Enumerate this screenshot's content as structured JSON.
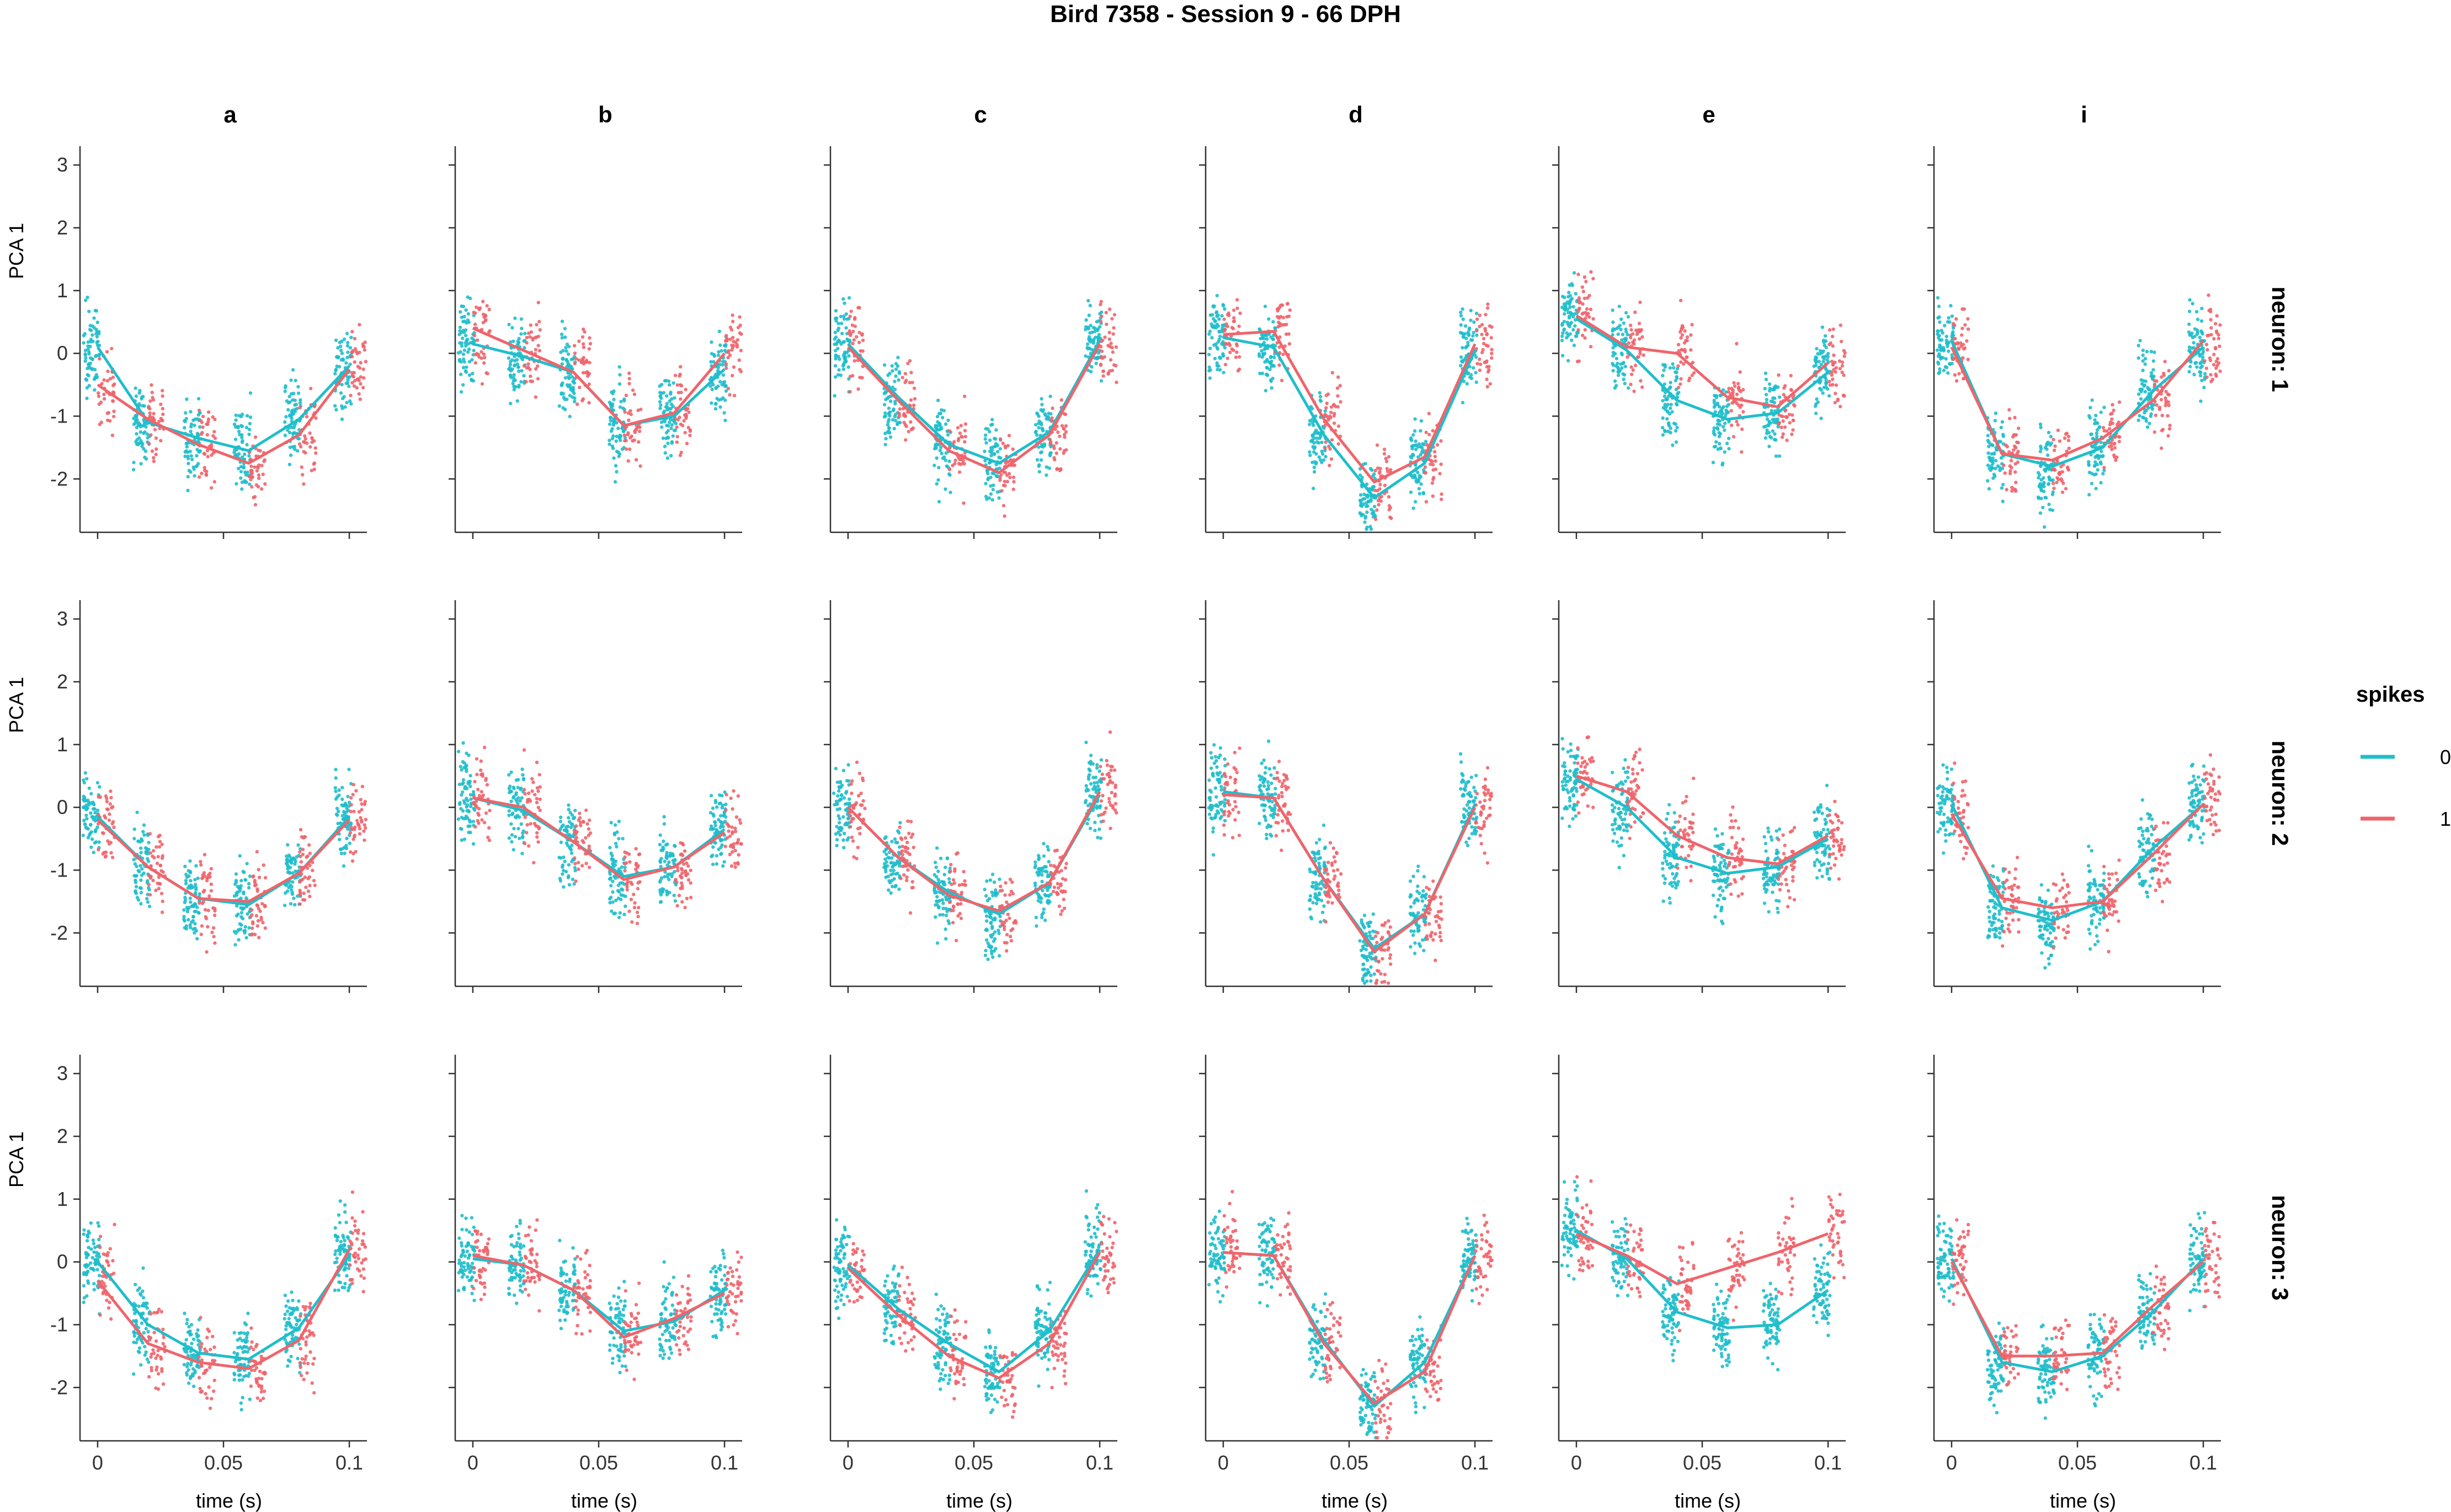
{
  "chart_data": {
    "type": "scatter",
    "title": "Bird 7358 - Session 9 - 66 DPH",
    "xlabel": "time (s)",
    "ylabel": "PCA 1",
    "x_ticks": [
      0,
      0.05,
      0.1
    ],
    "x_tick_labels": [
      "0",
      "0.05",
      "0.1"
    ],
    "y_ticks": [
      3,
      2,
      1,
      0,
      -1,
      -2
    ],
    "y_tick_labels": [
      "3",
      "2",
      "1",
      "0",
      "-1",
      "-2"
    ],
    "xlim": [
      -0.007,
      0.107
    ],
    "ylim": [
      -2.85,
      3.3
    ],
    "x_bins": [
      0,
      0.02,
      0.04,
      0.06,
      0.08,
      0.1
    ],
    "columns": [
      "a",
      "b",
      "c",
      "d",
      "e",
      "i"
    ],
    "rows": [
      "neuron: 1",
      "neuron: 2",
      "neuron: 3"
    ],
    "legend": {
      "title": "spikes",
      "entries": [
        {
          "label": "0",
          "color": "#1fbecb"
        },
        {
          "label": "1",
          "color": "#f0646b"
        }
      ],
      "position": "right"
    },
    "panels": [
      {
        "row": 0,
        "col": 0,
        "s0": [
          0.1,
          -1.1,
          -1.35,
          -1.55,
          -1.05,
          -0.2
        ],
        "s1": [
          -0.5,
          -1.05,
          -1.45,
          -1.75,
          -1.3,
          -0.25
        ]
      },
      {
        "row": 0,
        "col": 1,
        "s0": [
          0.15,
          -0.05,
          -0.3,
          -1.15,
          -1.0,
          -0.25
        ],
        "s1": [
          0.4,
          0.05,
          -0.3,
          -1.15,
          -0.95,
          0.0
        ]
      },
      {
        "row": 0,
        "col": 2,
        "s0": [
          0.15,
          -0.7,
          -1.45,
          -1.75,
          -1.25,
          0.2
        ],
        "s1": [
          0.1,
          -0.75,
          -1.55,
          -1.9,
          -1.3,
          0.15
        ]
      },
      {
        "row": 0,
        "col": 3,
        "s0": [
          0.25,
          0.1,
          -1.3,
          -2.3,
          -1.75,
          0.05
        ],
        "s1": [
          0.3,
          0.35,
          -1.05,
          -2.05,
          -1.65,
          0.15
        ]
      },
      {
        "row": 0,
        "col": 4,
        "s0": [
          0.55,
          0.05,
          -0.75,
          -1.05,
          -0.95,
          -0.3
        ],
        "s1": [
          0.6,
          0.1,
          0.0,
          -0.7,
          -0.85,
          -0.15
        ]
      },
      {
        "row": 0,
        "col": 5,
        "s0": [
          0.2,
          -1.6,
          -1.8,
          -1.5,
          -0.6,
          0.1
        ],
        "s1": [
          0.1,
          -1.6,
          -1.7,
          -1.35,
          -0.75,
          0.2
        ]
      },
      {
        "row": 1,
        "col": 0,
        "s0": [
          -0.15,
          -0.95,
          -1.45,
          -1.55,
          -1.05,
          -0.15
        ],
        "s1": [
          -0.2,
          -0.95,
          -1.45,
          -1.5,
          -1.05,
          -0.2
        ]
      },
      {
        "row": 1,
        "col": 1,
        "s0": [
          0.15,
          -0.05,
          -0.55,
          -1.1,
          -0.95,
          -0.35
        ],
        "s1": [
          0.15,
          0.0,
          -0.55,
          -1.15,
          -0.95,
          -0.4
        ]
      },
      {
        "row": 1,
        "col": 2,
        "s0": [
          0.0,
          -0.8,
          -1.35,
          -1.7,
          -1.2,
          0.2
        ],
        "s1": [
          0.0,
          -0.8,
          -1.4,
          -1.65,
          -1.2,
          0.25
        ]
      },
      {
        "row": 1,
        "col": 3,
        "s0": [
          0.25,
          0.15,
          -1.15,
          -2.25,
          -1.7,
          0.05
        ],
        "s1": [
          0.2,
          0.15,
          -1.15,
          -2.3,
          -1.7,
          0.0
        ]
      },
      {
        "row": 1,
        "col": 4,
        "s0": [
          0.45,
          0.0,
          -0.8,
          -1.05,
          -0.95,
          -0.5
        ],
        "s1": [
          0.5,
          0.25,
          -0.45,
          -0.8,
          -0.9,
          -0.45
        ]
      },
      {
        "row": 1,
        "col": 5,
        "s0": [
          0.05,
          -1.6,
          -1.8,
          -1.5,
          -0.65,
          0.05
        ],
        "s1": [
          -0.1,
          -1.45,
          -1.6,
          -1.5,
          -0.75,
          0.05
        ]
      },
      {
        "row": 2,
        "col": 0,
        "s0": [
          0.0,
          -1.0,
          -1.45,
          -1.55,
          -1.05,
          0.1
        ],
        "s1": [
          -0.3,
          -1.3,
          -1.6,
          -1.7,
          -1.25,
          0.2
        ]
      },
      {
        "row": 2,
        "col": 1,
        "s0": [
          0.05,
          -0.05,
          -0.45,
          -1.1,
          -0.95,
          -0.45
        ],
        "s1": [
          0.1,
          -0.05,
          -0.45,
          -1.2,
          -0.9,
          -0.5
        ]
      },
      {
        "row": 2,
        "col": 2,
        "s0": [
          -0.05,
          -0.75,
          -1.3,
          -1.75,
          -1.1,
          0.2
        ],
        "s1": [
          -0.1,
          -0.85,
          -1.5,
          -1.85,
          -1.3,
          0.15
        ]
      },
      {
        "row": 2,
        "col": 3,
        "s0": [
          0.15,
          0.1,
          -1.25,
          -2.3,
          -1.6,
          0.1
        ],
        "s1": [
          0.15,
          0.1,
          -1.3,
          -2.25,
          -1.75,
          0.1
        ]
      },
      {
        "row": 2,
        "col": 4,
        "s0": [
          0.5,
          0.05,
          -0.8,
          -1.05,
          -1.0,
          -0.45
        ],
        "s1": [
          0.45,
          0.1,
          -0.35,
          -0.1,
          0.15,
          0.45
        ]
      },
      {
        "row": 2,
        "col": 5,
        "s0": [
          0.05,
          -1.6,
          -1.75,
          -1.5,
          -0.8,
          0.05
        ],
        "s1": [
          0.0,
          -1.5,
          -1.5,
          -1.45,
          -0.7,
          0.0
        ]
      }
    ]
  }
}
